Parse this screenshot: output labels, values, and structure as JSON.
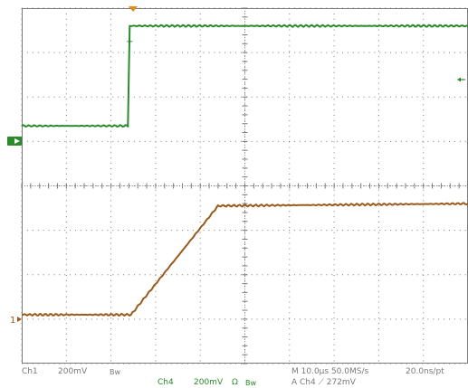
{
  "colors": {
    "ch1": "#2b8a2b",
    "ch4": "#9a5a1c",
    "trigger_marker": "#e08a1a",
    "graticule": "#7a7a7a",
    "status_gray": "#7a7a7a",
    "status_green": "#2b8a2b"
  },
  "markers": {
    "ch4_ground": "1",
    "ch1_ground_icon": "ground-indicator-icon",
    "trigger_level_icon": "left-arrow-icon",
    "trigger_position_icon": "down-triangle-icon"
  },
  "status": {
    "ch1_label": "Ch1",
    "ch1_scale": "200mV",
    "ch1_bw": "Bw",
    "ch4_label": "Ch4",
    "ch4_scale": "200mV",
    "ch4_omega": "Ω",
    "ch4_bw": "Bw",
    "horizontal": "M 10.0µs 50.0MS/s",
    "sample_interval": "20.0ns/pt",
    "trigger": "A  Ch4  ⟋  272mV"
  },
  "chart_data": {
    "type": "line",
    "title": "",
    "xlabel": "",
    "ylabel": "",
    "grid": true,
    "xlim": [
      0,
      10
    ],
    "ylim": [
      0,
      8
    ],
    "series": [
      {
        "x": [
          0,
          2.38,
          2.42,
          10
        ],
        "y": [
          5.35,
          5.35,
          7.6,
          7.6
        ]
      },
      {
        "x": [
          0,
          2.45,
          4.4,
          10
        ],
        "y": [
          1.1,
          1.1,
          3.55,
          3.6
        ]
      }
    ]
  }
}
